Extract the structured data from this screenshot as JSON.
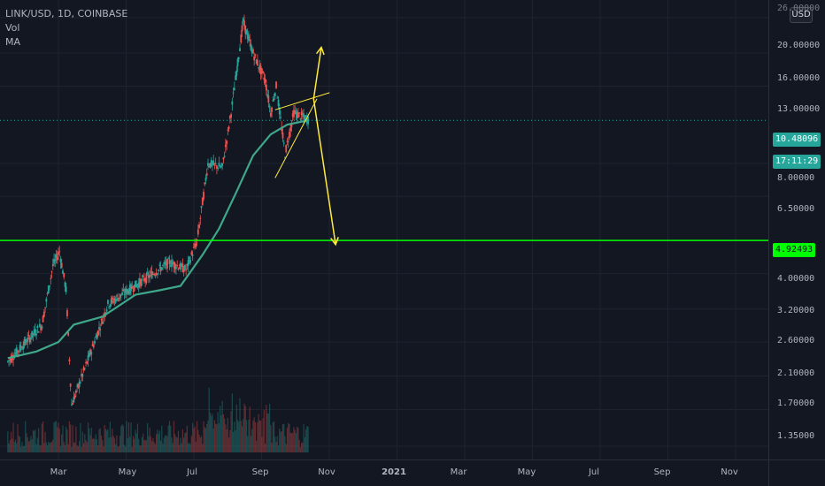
{
  "header": {
    "symbol_line": "LINK/USD, 1D, COINBASE",
    "indicators": [
      "Vol",
      "MA"
    ]
  },
  "currency_button": "USD",
  "price_scale": {
    "top_partial_label": "26.00000",
    "ticks": [
      "20.00000",
      "16.00000",
      "13.00000",
      "8.00000",
      "6.50000",
      "4.00000",
      "3.20000",
      "2.60000",
      "2.10000",
      "1.70000",
      "1.35000"
    ],
    "last_price": "10.48096",
    "countdown": "17:11:29",
    "level_label": "4.92493"
  },
  "time_scale": {
    "labels": [
      "Mar",
      "May",
      "Jul",
      "Sep",
      "Nov",
      "2021",
      "Mar",
      "May",
      "Jul",
      "Sep",
      "Nov"
    ]
  },
  "colors": {
    "background": "#131722",
    "up": "#26a69a",
    "down": "#ef5350",
    "ma": "#3fa88a",
    "level_line": "#00ff00",
    "drawing": "#ffeb3b"
  },
  "chart_data": {
    "type": "candlestick",
    "symbol": "LINK/USD",
    "interval": "1D",
    "scale": "log",
    "y_range": [
      1.2,
      26
    ],
    "horizontal_level": 4.92493,
    "last_price": 10.48096,
    "ma_series": [
      {
        "date": "2020-01-15",
        "value": 2.35
      },
      {
        "date": "2020-02-10",
        "value": 2.45
      },
      {
        "date": "2020-03-01",
        "value": 2.6
      },
      {
        "date": "2020-03-15",
        "value": 2.9
      },
      {
        "date": "2020-04-10",
        "value": 3.05
      },
      {
        "date": "2020-05-10",
        "value": 3.5
      },
      {
        "date": "2020-06-01",
        "value": 3.6
      },
      {
        "date": "2020-06-20",
        "value": 3.7
      },
      {
        "date": "2020-07-10",
        "value": 4.5
      },
      {
        "date": "2020-07-25",
        "value": 5.3
      },
      {
        "date": "2020-08-10",
        "value": 6.7
      },
      {
        "date": "2020-08-25",
        "value": 8.4
      },
      {
        "date": "2020-09-10",
        "value": 9.6
      },
      {
        "date": "2020-09-25",
        "value": 10.2
      },
      {
        "date": "2020-10-15",
        "value": 10.5
      }
    ],
    "price_path": [
      {
        "date": "2020-01-15",
        "value": 2.3
      },
      {
        "date": "2020-02-15",
        "value": 2.9
      },
      {
        "date": "2020-02-25",
        "value": 4.2
      },
      {
        "date": "2020-03-02",
        "value": 4.6
      },
      {
        "date": "2020-03-08",
        "value": 3.6
      },
      {
        "date": "2020-03-13",
        "value": 1.75
      },
      {
        "date": "2020-03-25",
        "value": 2.2
      },
      {
        "date": "2020-04-15",
        "value": 3.3
      },
      {
        "date": "2020-05-15",
        "value": 3.8
      },
      {
        "date": "2020-06-10",
        "value": 4.3
      },
      {
        "date": "2020-06-25",
        "value": 4.1
      },
      {
        "date": "2020-07-05",
        "value": 4.9
      },
      {
        "date": "2020-07-15",
        "value": 8.0
      },
      {
        "date": "2020-07-28",
        "value": 7.8
      },
      {
        "date": "2020-08-05",
        "value": 11.0
      },
      {
        "date": "2020-08-16",
        "value": 19.5
      },
      {
        "date": "2020-08-25",
        "value": 16.0
      },
      {
        "date": "2020-09-05",
        "value": 13.5
      },
      {
        "date": "2020-09-10",
        "value": 11.0
      },
      {
        "date": "2020-09-15",
        "value": 13.0
      },
      {
        "date": "2020-09-23",
        "value": 8.5
      },
      {
        "date": "2020-10-01",
        "value": 11.0
      },
      {
        "date": "2020-10-15",
        "value": 10.5
      }
    ],
    "annotations": [
      {
        "type": "arrow",
        "from": {
          "date": "2020-10-19",
          "value": 12.0
        },
        "to": {
          "date": "2020-10-26",
          "value": 16.6
        }
      },
      {
        "type": "arrow",
        "from": {
          "date": "2020-10-19",
          "value": 12.0
        },
        "to": {
          "date": "2020-11-08",
          "value": 4.8
        }
      },
      {
        "type": "wedge",
        "points": [
          {
            "date": "2020-09-14",
            "value": 11.2
          },
          {
            "date": "2020-10-19",
            "value": 12.0
          },
          {
            "date": "2020-09-14",
            "value": 7.3
          },
          {
            "date": "2020-10-22",
            "value": 12.0
          }
        ]
      }
    ]
  }
}
